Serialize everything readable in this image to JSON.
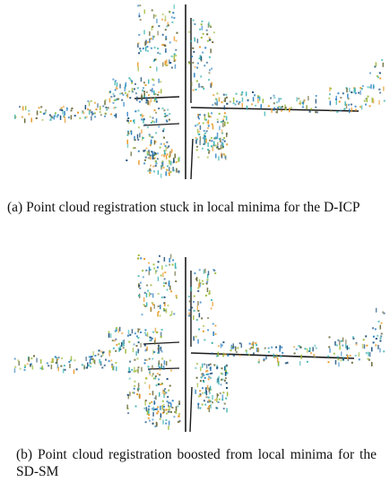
{
  "figures": [
    {
      "caption": "(a) Point cloud registration stuck in local minima for the D-ICP"
    },
    {
      "caption": "(b) Point cloud registration boosted from local minima for the SD-SM"
    }
  ]
}
